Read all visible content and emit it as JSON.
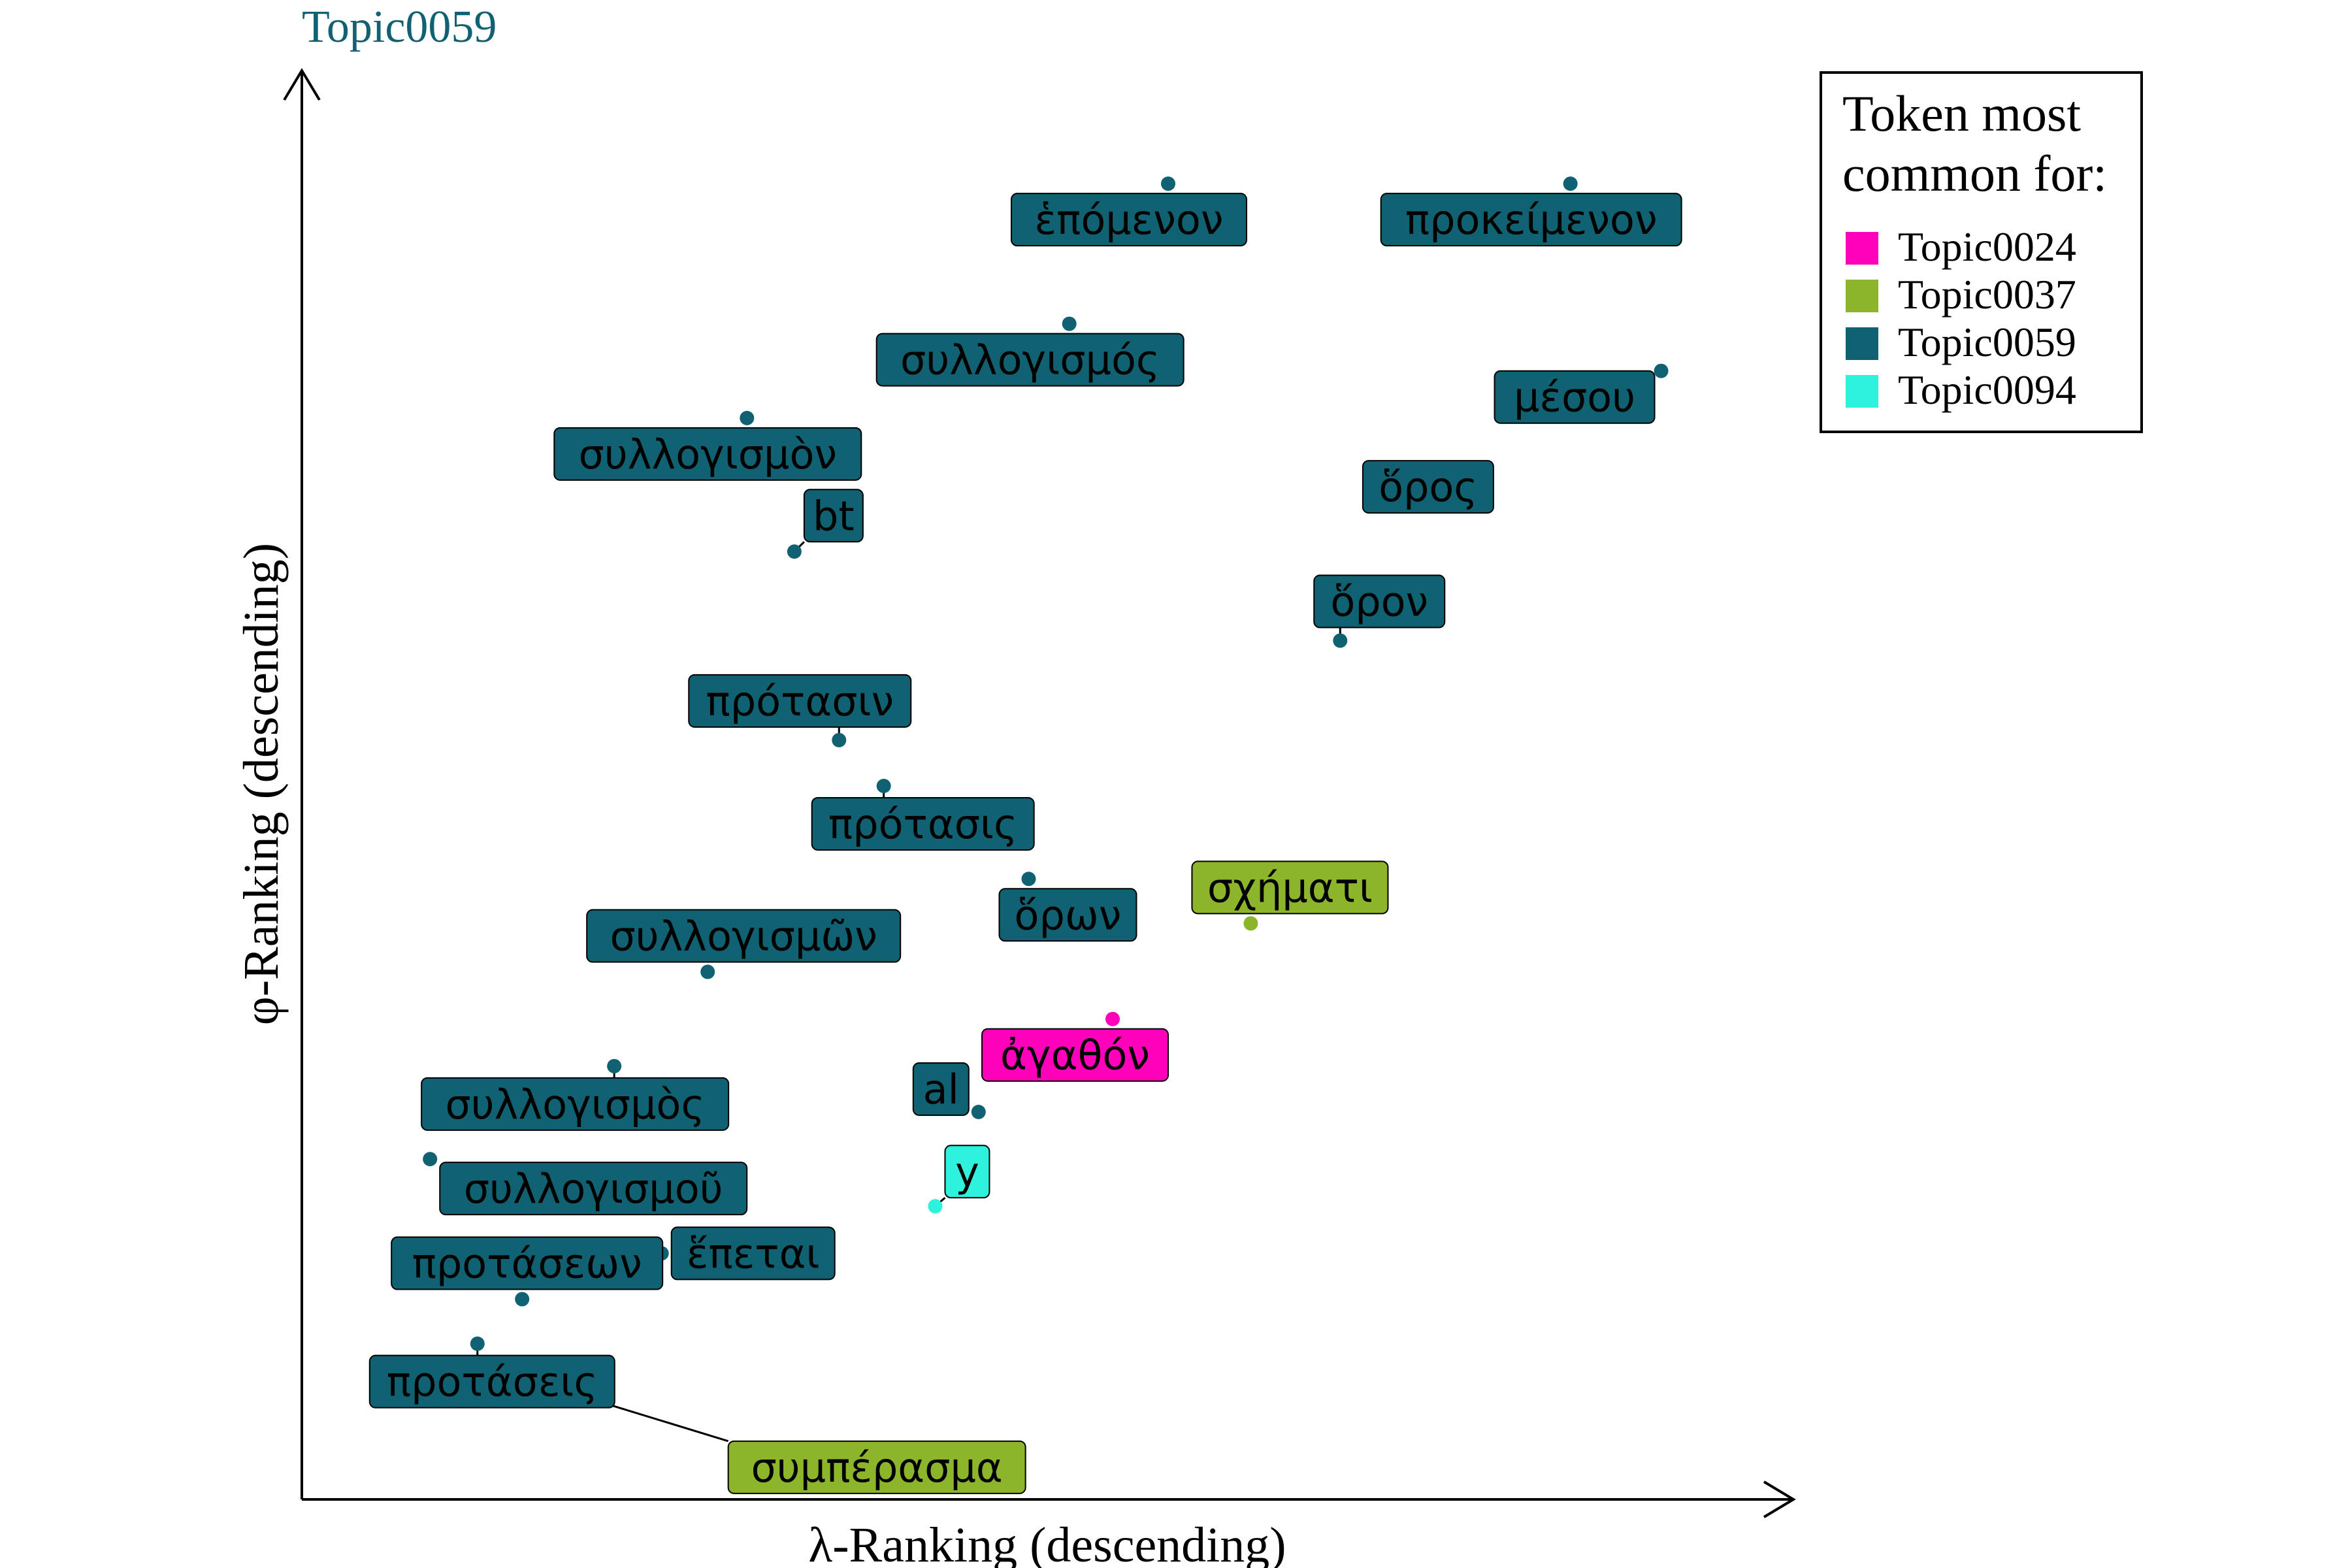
{
  "chart_data": {
    "type": "scatter",
    "title": "Topic0059",
    "xlabel": "λ-Ranking (descending)",
    "ylabel": "φ-Ranking (descending)",
    "xlim": [
      0,
      100
    ],
    "ylim": [
      0,
      100
    ],
    "grid": false,
    "legend": {
      "title_lines": [
        "Token most",
        "common for:"
      ],
      "placement": "top-right",
      "entries": [
        {
          "name": "Topic0024",
          "color": "#ff00bb"
        },
        {
          "name": "Topic0037",
          "color": "#8db52b"
        },
        {
          "name": "Topic0059",
          "color": "#106272"
        },
        {
          "name": "Topic0094",
          "color": "#2ef2dc"
        }
      ]
    },
    "points": [
      {
        "label": "ἑπόμενον",
        "topic": "Topic0059",
        "x": 58.9,
        "y": 96.5
      },
      {
        "label": "προκείμενον",
        "topic": "Topic0059",
        "x": 88.6,
        "y": 96.5
      },
      {
        "label": "συλλογισμός",
        "topic": "Topic0059",
        "x": 51.6,
        "y": 85.8
      },
      {
        "label": "μέσου",
        "topic": "Topic0059",
        "x": 95.3,
        "y": 82.2
      },
      {
        "label": "συλλογισμὸν",
        "topic": "Topic0059",
        "x": 27.8,
        "y": 78.6
      },
      {
        "label": "ὅρος",
        "topic": "Topic0059",
        "x": 75.2,
        "y": 72.6
      },
      {
        "label": "bt",
        "topic": "Topic0059",
        "x": 31.3,
        "y": 68.4
      },
      {
        "label": "ὅρον",
        "topic": "Topic0059",
        "x": 71.6,
        "y": 61.6
      },
      {
        "label": "πρότασιν",
        "topic": "Topic0059",
        "x": 34.6,
        "y": 54.0
      },
      {
        "label": "πρότασις",
        "topic": "Topic0059",
        "x": 37.9,
        "y": 50.5
      },
      {
        "label": "ὅρων",
        "topic": "Topic0059",
        "x": 48.6,
        "y": 43.4
      },
      {
        "label": "σχήματι",
        "topic": "Topic0037",
        "x": 65.0,
        "y": 40.0
      },
      {
        "label": "συλλογισμῶν",
        "topic": "Topic0059",
        "x": 24.9,
        "y": 36.3
      },
      {
        "label": "ἀγαθόν",
        "topic": "Topic0024",
        "x": 54.8,
        "y": 32.7
      },
      {
        "label": "συλλογισμὸς",
        "topic": "Topic0059",
        "x": 18.0,
        "y": 29.1
      },
      {
        "label": "al",
        "topic": "Topic0059",
        "x": 44.9,
        "y": 25.6
      },
      {
        "label": "συλλογισμοῦ",
        "topic": "Topic0059",
        "x": 4.4,
        "y": 22.0
      },
      {
        "label": "y",
        "topic": "Topic0094",
        "x": 41.7,
        "y": 18.4
      },
      {
        "label": "ἕπεται",
        "topic": "Topic0059",
        "x": 21.5,
        "y": 14.8
      },
      {
        "label": "προτάσεων",
        "topic": "Topic0059",
        "x": 11.2,
        "y": 11.3
      },
      {
        "label": "προτάσεις",
        "topic": "Topic0059",
        "x": 7.9,
        "y": 7.9
      },
      {
        "label": "συμπέρασμα",
        "topic": "Topic0037",
        "x": 14.6,
        "y": 4.2
      }
    ]
  }
}
